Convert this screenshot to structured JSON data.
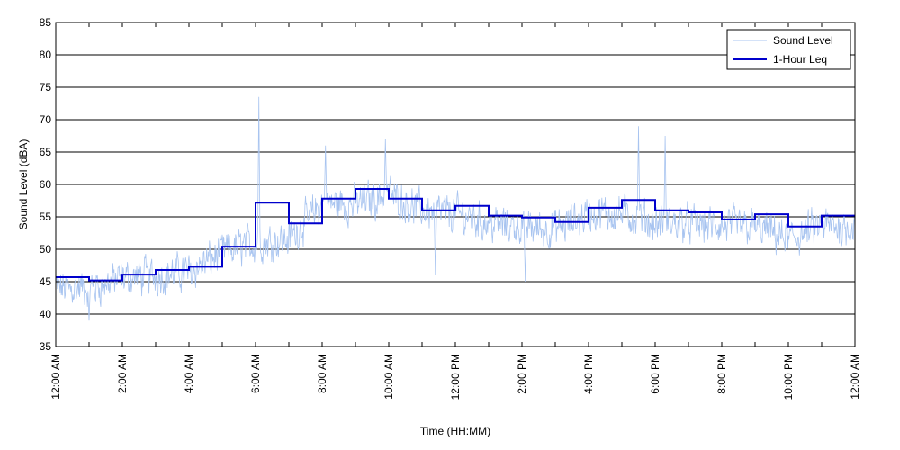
{
  "chart_data": {
    "type": "line",
    "title": "",
    "xlabel": "Time (HH:MM)",
    "ylabel": "Sound Level (dBA)",
    "xlim": [
      0,
      24
    ],
    "ylim": [
      35,
      85
    ],
    "y_ticks": [
      35,
      40,
      45,
      50,
      55,
      60,
      65,
      70,
      75,
      80,
      85
    ],
    "x_tick_hours": [
      0,
      2,
      4,
      6,
      8,
      10,
      12,
      14,
      16,
      18,
      20,
      22,
      24
    ],
    "x_tick_labels": [
      "12:00 AM",
      "2:00 AM",
      "4:00 AM",
      "6:00 AM",
      "8:00 AM",
      "10:00 AM",
      "12:00 PM",
      "2:00 PM",
      "4:00 PM",
      "6:00 PM",
      "8:00 PM",
      "10:00 PM",
      "12:00 AM"
    ],
    "grid": "horizontal",
    "legend_position": "top-right",
    "series": [
      {
        "name": "Sound Level",
        "kind": "line",
        "color": "#a8c4f0",
        "hourly_mean": [
          44,
          44,
          45.5,
          46,
          46.5,
          49.5,
          51,
          51.5,
          57,
          57,
          58.5,
          56,
          55.5,
          54,
          53.5,
          53,
          55.5,
          55.5,
          54,
          54,
          53.5,
          53.5,
          51.5,
          53.5
        ],
        "peaks": [
          {
            "x": 6.1,
            "y": 73.5
          },
          {
            "x": 8.1,
            "y": 66
          },
          {
            "x": 9.9,
            "y": 67
          },
          {
            "x": 17.5,
            "y": 69
          },
          {
            "x": 18.3,
            "y": 67.5
          },
          {
            "x": 11.4,
            "y": 46
          },
          {
            "x": 1.0,
            "y": 39
          },
          {
            "x": 14.1,
            "y": 45
          }
        ]
      },
      {
        "name": "1-Hour Leq",
        "kind": "step",
        "color": "#0000cc",
        "x": [
          0,
          1,
          2,
          3,
          4,
          5,
          6,
          7,
          8,
          9,
          10,
          11,
          12,
          13,
          14,
          15,
          16,
          17,
          18,
          19,
          20,
          21,
          22,
          23
        ],
        "values": [
          45.7,
          45.2,
          46.1,
          46.8,
          47.3,
          50.4,
          57.2,
          54.0,
          57.8,
          59.3,
          57.8,
          56.0,
          56.7,
          55.2,
          54.9,
          54.2,
          56.4,
          57.6,
          56.0,
          55.7,
          54.6,
          55.4,
          53.5,
          55.2
        ]
      }
    ]
  }
}
